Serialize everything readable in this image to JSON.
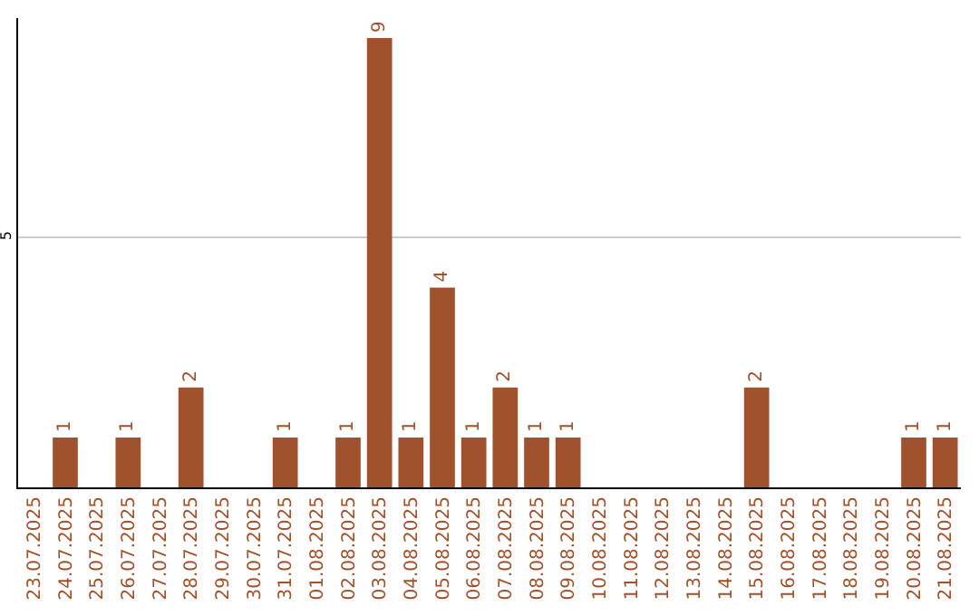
{
  "chart_data": {
    "type": "bar",
    "categories": [
      "23.07.2025",
      "24.07.2025",
      "25.07.2025",
      "26.07.2025",
      "27.07.2025",
      "28.07.2025",
      "29.07.2025",
      "30.07.2025",
      "31.07.2025",
      "01.08.2025",
      "02.08.2025",
      "03.08.2025",
      "04.08.2025",
      "05.08.2025",
      "06.08.2025",
      "07.08.2025",
      "08.08.2025",
      "09.08.2025",
      "10.08.2025",
      "11.08.2025",
      "12.08.2025",
      "13.08.2025",
      "14.08.2025",
      "15.08.2025",
      "16.08.2025",
      "17.08.2025",
      "18.08.2025",
      "19.08.2025",
      "20.08.2025",
      "21.08.2025"
    ],
    "values": [
      null,
      1,
      null,
      1,
      null,
      2,
      null,
      null,
      1,
      null,
      1,
      9,
      1,
      4,
      1,
      2,
      1,
      1,
      null,
      null,
      null,
      null,
      null,
      2,
      null,
      null,
      null,
      null,
      1,
      1
    ],
    "color": "#a0522d",
    "data_labels": true,
    "ylim": [
      0,
      9.4
    ],
    "yticks": [
      5
    ],
    "grid": "y"
  }
}
